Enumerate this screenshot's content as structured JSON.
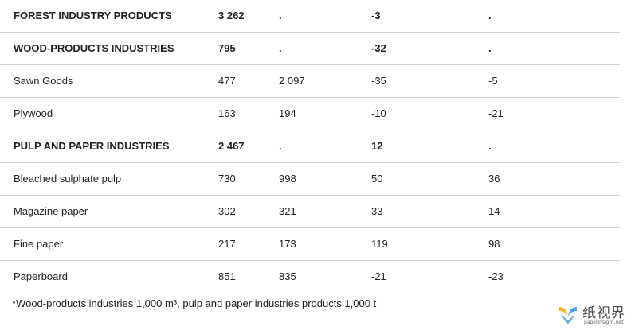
{
  "rows": [
    {
      "label": "FOREST INDUSTRY PRODUCTS",
      "v1": "3 262",
      "v2": ".",
      "v3": "-3",
      "v4": ".",
      "bold": true
    },
    {
      "label": "WOOD-PRODUCTS INDUSTRIES",
      "v1": "795",
      "v2": ".",
      "v3": "-32",
      "v4": ".",
      "bold": true
    },
    {
      "label": "Sawn Goods",
      "v1": "477",
      "v2": "2 097",
      "v3": "-35",
      "v4": "-5",
      "bold": false
    },
    {
      "label": "Plywood",
      "v1": "163",
      "v2": "194",
      "v3": "-10",
      "v4": "-21",
      "bold": false
    },
    {
      "label": "PULP AND PAPER INDUSTRIES",
      "v1": "2 467",
      "v2": ".",
      "v3": "12",
      "v4": ".",
      "bold": true
    },
    {
      "label": "Bleached sulphate pulp",
      "v1": "730",
      "v2": "998",
      "v3": "50",
      "v4": "36",
      "bold": false
    },
    {
      "label": "Magazine paper",
      "v1": "302",
      "v2": "321",
      "v3": "33",
      "v4": "14",
      "bold": false
    },
    {
      "label": "Fine paper",
      "v1": "217",
      "v2": "173",
      "v3": "119",
      "v4": "98",
      "bold": false
    },
    {
      "label": "Paperboard",
      "v1": "851",
      "v2": "835",
      "v3": "-21",
      "v4": "-23",
      "bold": false
    }
  ],
  "footnote": "*Wood-products industries 1,000 m³, pulp and paper industries products 1,000 t",
  "watermark": {
    "text": "纸视界",
    "url": "paperinsight.net",
    "colors": [
      "#f2b534",
      "#4aa3d8"
    ]
  }
}
